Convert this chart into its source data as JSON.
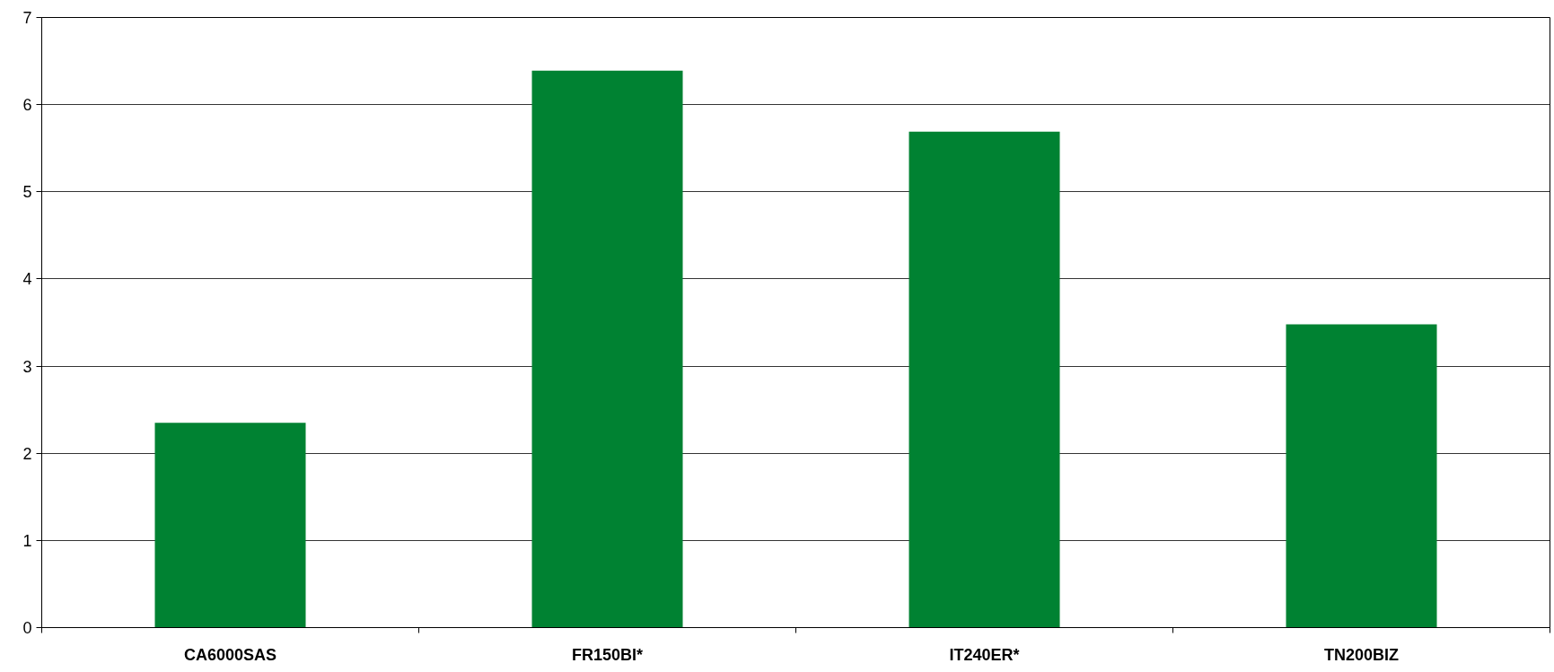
{
  "chart_data": {
    "type": "bar",
    "categories": [
      "CA6000SAS",
      "FR150BI*",
      "IT240ER*",
      "TN200BIZ"
    ],
    "values": [
      2.35,
      6.39,
      5.69,
      3.48
    ],
    "color": "#008232",
    "ylim": [
      0,
      7
    ],
    "yticks": [
      0,
      1,
      2,
      3,
      4,
      5,
      6,
      7
    ],
    "grid": "y"
  }
}
